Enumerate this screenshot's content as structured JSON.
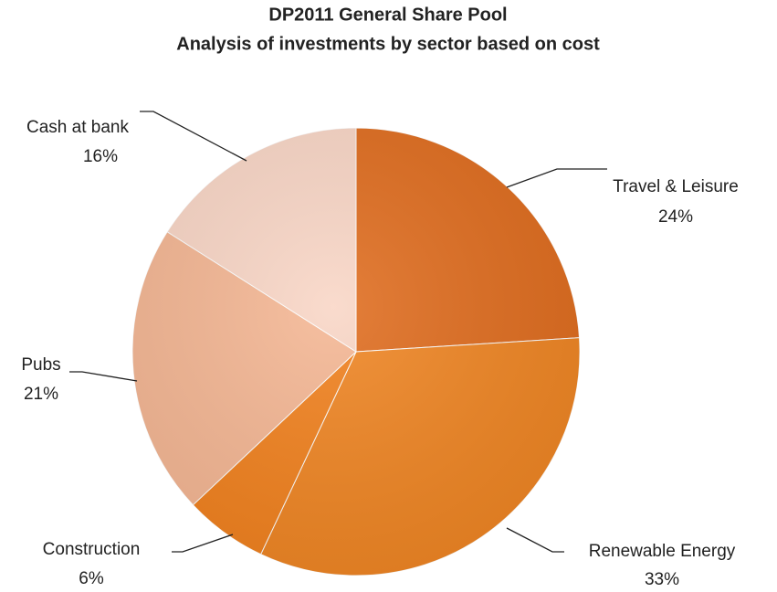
{
  "chart_data": {
    "type": "pie",
    "title": "DP2011 General Share Pool",
    "subtitle": "Analysis of investments by sector based on cost",
    "categories": [
      "Travel & Leisure",
      "Renewable Energy",
      "Construction",
      "Pubs",
      "Cash at bank"
    ],
    "values": [
      24,
      33,
      6,
      21,
      16
    ],
    "value_labels": [
      "24%",
      "33%",
      "6%",
      "21%",
      "16%"
    ],
    "colors": [
      "#e06d1f",
      "#f08624",
      "#f2821f",
      "#f5b794",
      "#f9d6c6"
    ]
  }
}
